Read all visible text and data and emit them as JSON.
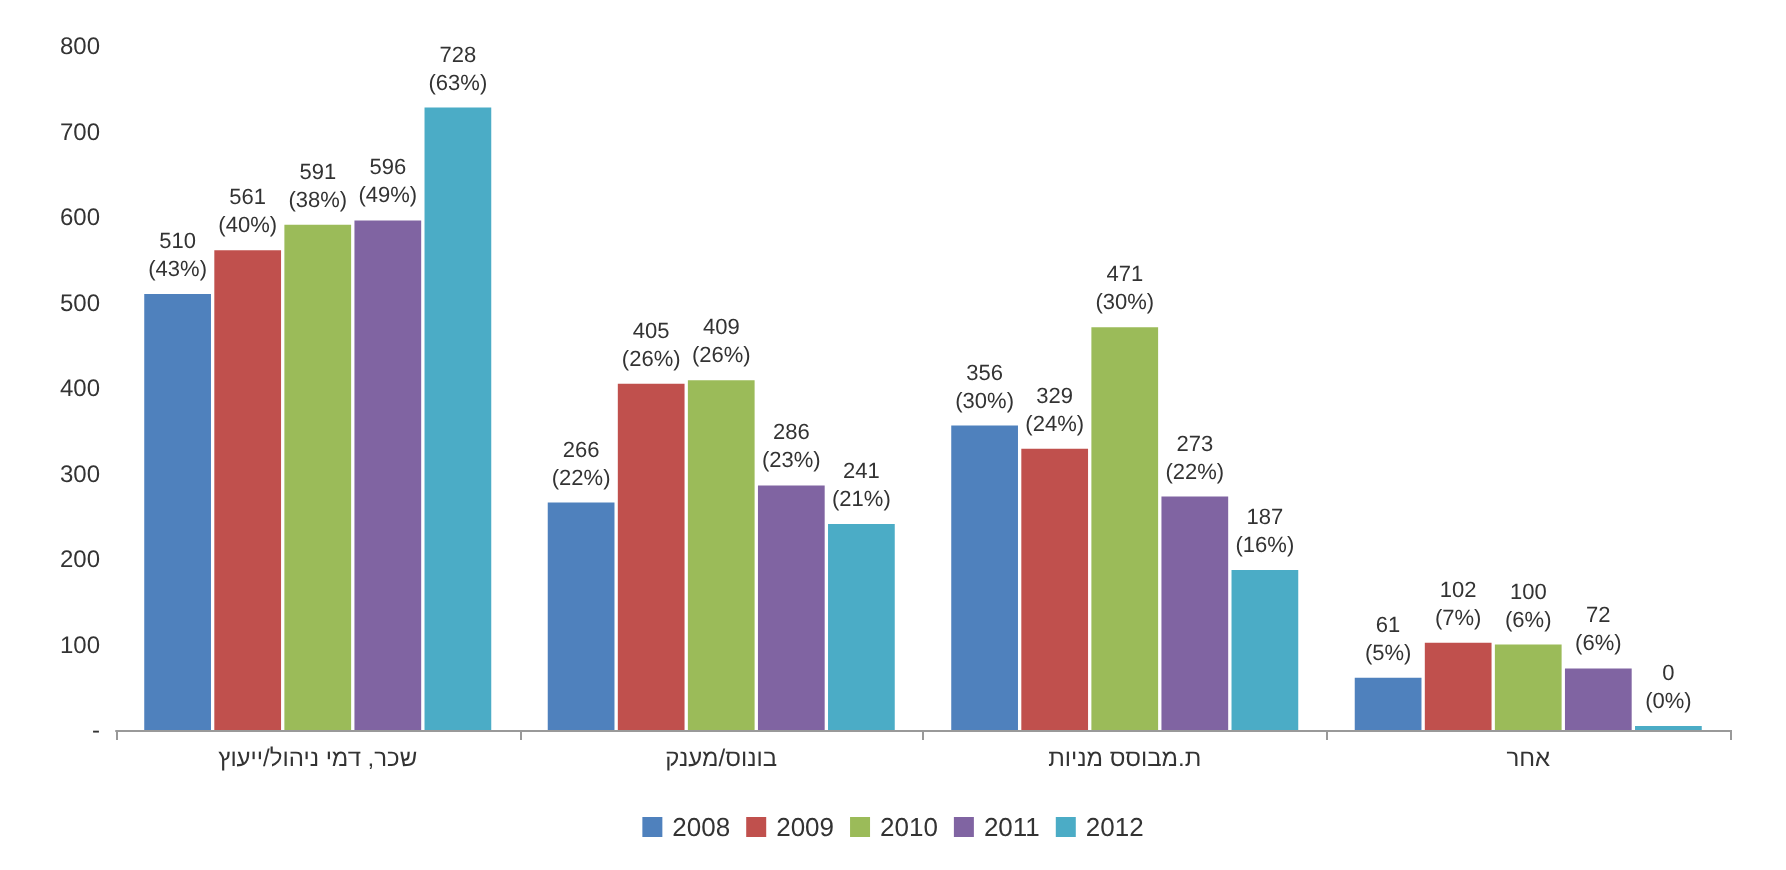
{
  "chart_data": {
    "type": "bar",
    "categories": [
      "שכר, דמי ניהול/ייעוץ",
      "בונוס/מענק",
      "ת.מבוסס מניות",
      "אחר"
    ],
    "series": [
      {
        "name": "2008",
        "color": "#4f81bd",
        "values": [
          510,
          266,
          356,
          61
        ],
        "value_labels": [
          "510 (43%)",
          "266 (22%)",
          "356 (30%)",
          "61 (5%)"
        ]
      },
      {
        "name": "2009",
        "color": "#c0504d",
        "values": [
          561,
          405,
          329,
          102
        ],
        "value_labels": [
          "561 (40%)",
          "405 (26%)",
          "329 (24%)",
          "102 (7%)"
        ]
      },
      {
        "name": "2010",
        "color": "#9bbb59",
        "values": [
          591,
          409,
          471,
          100
        ],
        "value_labels": [
          "591 (38%)",
          "409 (26%)",
          "471 (30%)",
          "100 (6%)"
        ]
      },
      {
        "name": "2011",
        "color": "#8064a2",
        "values": [
          596,
          286,
          273,
          72
        ],
        "value_labels": [
          "596 (49%)",
          "286 (23%)",
          "273 (22%)",
          "72 (6%)"
        ]
      },
      {
        "name": "2012",
        "color": "#4bacc6",
        "values": [
          728,
          241,
          187,
          0
        ],
        "value_labels": [
          "728 (63%)",
          "241 (21%)",
          "187 (16%)",
          "0 (0%)"
        ]
      }
    ],
    "ylim": [
      0,
      800
    ],
    "yticks": [
      {
        "value": 0,
        "label": "-"
      },
      100,
      200,
      300,
      400,
      500,
      600,
      700,
      800
    ],
    "grid": false,
    "legend": "bottom"
  }
}
